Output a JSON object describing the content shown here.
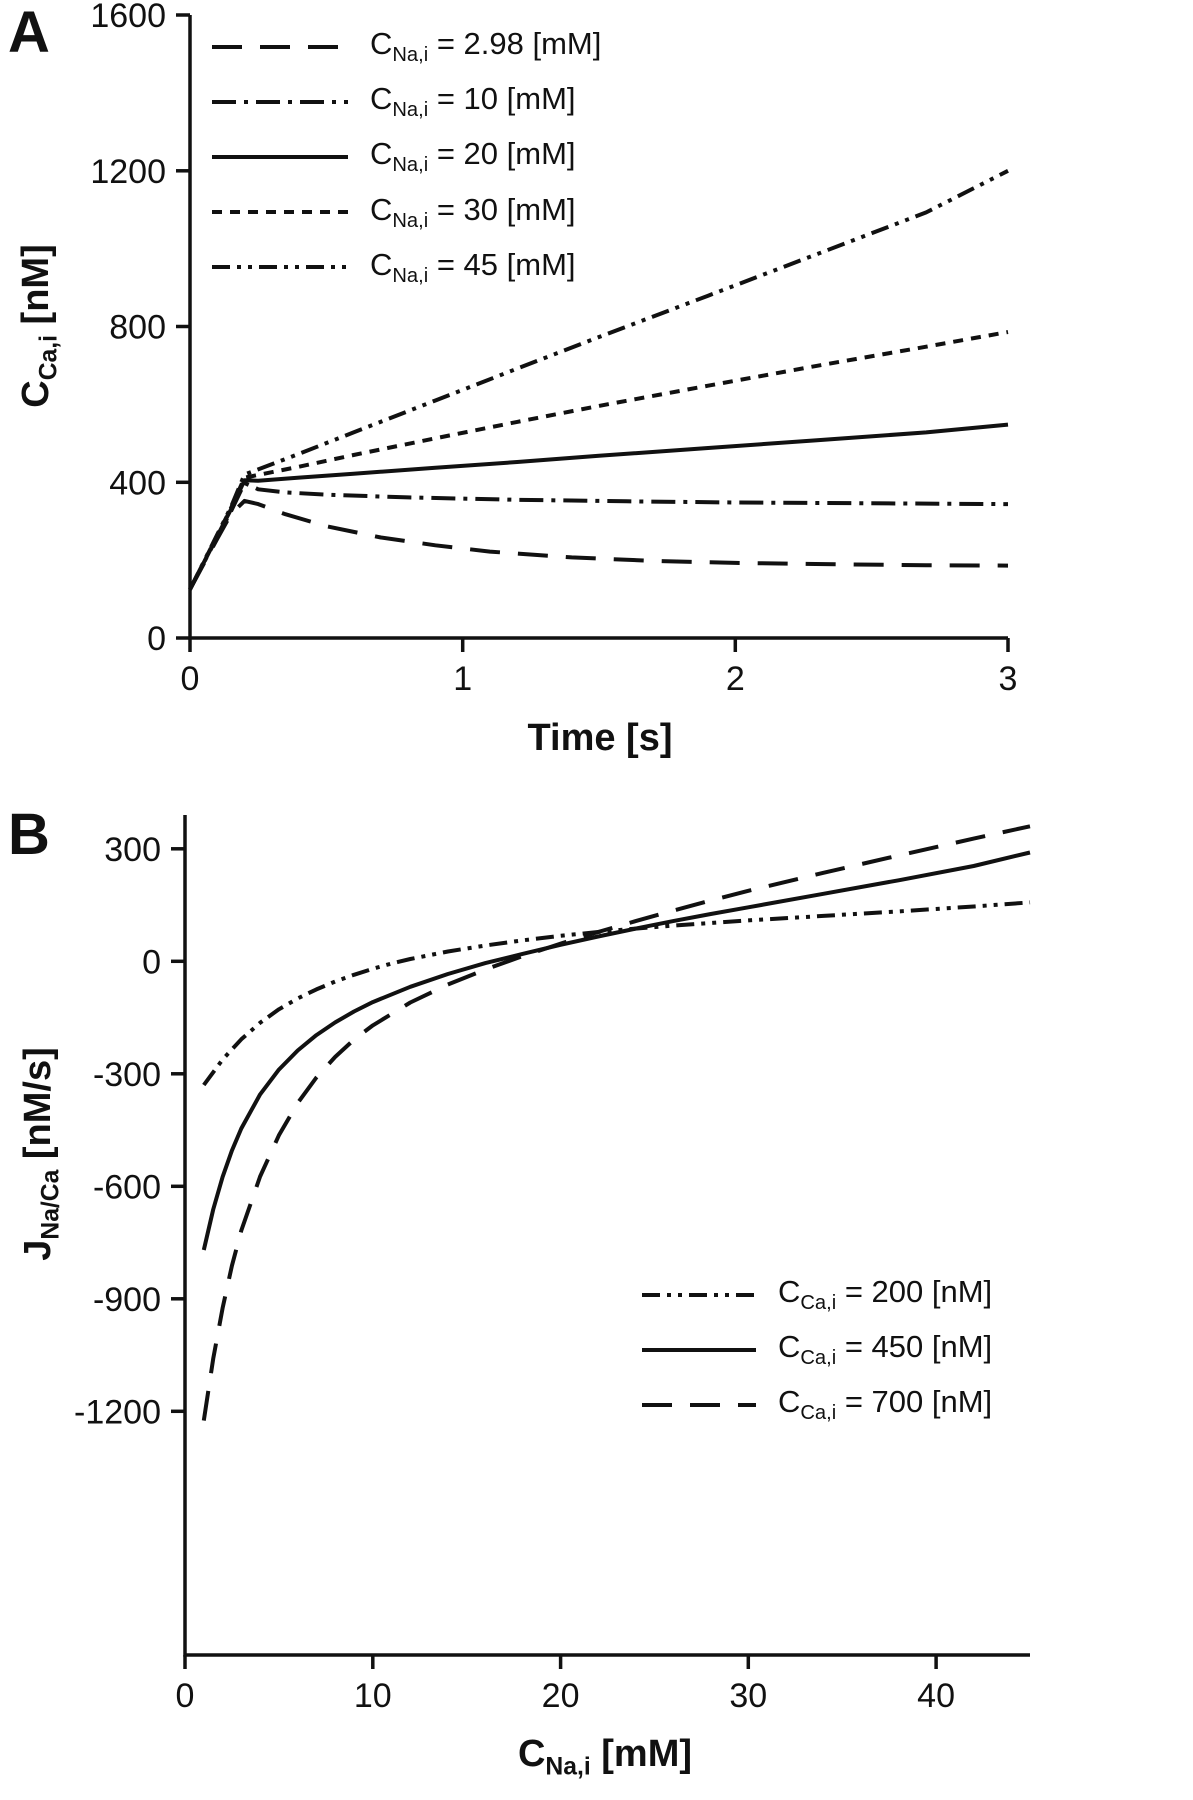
{
  "figure": {
    "panels": [
      {
        "label": "A",
        "ylabel": {
          "base": "C",
          "sub": "Ca,i",
          "rest": " [nM]"
        },
        "xlabel": {
          "base": "Time",
          "sub": "",
          "rest": " [s]"
        }
      },
      {
        "label": "B",
        "ylabel": {
          "base": "J",
          "sub": "Na/Ca",
          "rest": " [nM/s]"
        },
        "xlabel": {
          "base": "C",
          "sub": "Na,i",
          "rest": " [mM]"
        }
      }
    ],
    "line_color": "#111111"
  },
  "chart_data": [
    {
      "panel": "A",
      "type": "line",
      "title": "",
      "xlabel": "Time [s]",
      "ylabel": "C_Ca,i [nM]",
      "xlim": [
        0,
        3
      ],
      "ylim": [
        0,
        1600
      ],
      "xticks": [
        0,
        1,
        2,
        3
      ],
      "yticks": [
        0,
        400,
        800,
        1200,
        1600
      ],
      "grid": false,
      "legend_position": "top-left",
      "series": [
        {
          "name": "C_Na,i = 2.98 [mM]",
          "label": {
            "base": "C",
            "sub": "Na,i",
            "rest": " = 2.98 [mM]"
          },
          "style": "long-dash",
          "points": [
            [
              0,
              125
            ],
            [
              0.05,
              190
            ],
            [
              0.1,
              255
            ],
            [
              0.15,
              318
            ],
            [
              0.2,
              352
            ],
            [
              0.25,
              344
            ],
            [
              0.35,
              318
            ],
            [
              0.5,
              287
            ],
            [
              0.7,
              258
            ],
            [
              0.9,
              238
            ],
            [
              1.1,
              222
            ],
            [
              1.4,
              207
            ],
            [
              1.7,
              198
            ],
            [
              2.0,
              193
            ],
            [
              2.4,
              189
            ],
            [
              2.7,
              187
            ],
            [
              3.0,
              186
            ]
          ]
        },
        {
          "name": "C_Na,i = 10 [mM]",
          "label": {
            "base": "C",
            "sub": "Na,i",
            "rest": " = 10 [mM]"
          },
          "style": "dash-dot",
          "points": [
            [
              0,
              125
            ],
            [
              0.05,
              192
            ],
            [
              0.1,
              260
            ],
            [
              0.15,
              325
            ],
            [
              0.2,
              398
            ],
            [
              0.25,
              382
            ],
            [
              0.35,
              374
            ],
            [
              0.5,
              368
            ],
            [
              0.8,
              361
            ],
            [
              1.2,
              355
            ],
            [
              1.6,
              351
            ],
            [
              2.0,
              348
            ],
            [
              2.5,
              346
            ],
            [
              3.0,
              344
            ]
          ]
        },
        {
          "name": "C_Na,i = 20 [mM]",
          "label": {
            "base": "C",
            "sub": "Na,i",
            "rest": " = 20 [mM]"
          },
          "style": "solid",
          "points": [
            [
              0,
              125
            ],
            [
              0.05,
              193
            ],
            [
              0.1,
              262
            ],
            [
              0.15,
              330
            ],
            [
              0.2,
              405
            ],
            [
              0.25,
              404
            ],
            [
              0.4,
              412
            ],
            [
              0.6,
              422
            ],
            [
              0.9,
              437
            ],
            [
              1.2,
              452
            ],
            [
              1.5,
              468
            ],
            [
              1.9,
              488
            ],
            [
              2.3,
              508
            ],
            [
              2.7,
              528
            ],
            [
              3.0,
              548
            ]
          ]
        },
        {
          "name": "C_Na,i = 30 [mM]",
          "label": {
            "base": "C",
            "sub": "Na,i",
            "rest": " = 30 [mM]"
          },
          "style": "dash",
          "points": [
            [
              0,
              125
            ],
            [
              0.05,
              194
            ],
            [
              0.1,
              264
            ],
            [
              0.15,
              333
            ],
            [
              0.2,
              412
            ],
            [
              0.25,
              419
            ],
            [
              0.4,
              440
            ],
            [
              0.6,
              470
            ],
            [
              0.9,
              513
            ],
            [
              1.2,
              555
            ],
            [
              1.5,
              596
            ],
            [
              1.9,
              648
            ],
            [
              2.3,
              699
            ],
            [
              2.7,
              748
            ],
            [
              3.0,
              786
            ]
          ]
        },
        {
          "name": "C_Na,i = 45 [mM]",
          "label": {
            "base": "C",
            "sub": "Na,i",
            "rest": " = 45 [mM]"
          },
          "style": "dash-dot-dot",
          "points": [
            [
              0,
              125
            ],
            [
              0.05,
              195
            ],
            [
              0.1,
              266
            ],
            [
              0.15,
              336
            ],
            [
              0.2,
              420
            ],
            [
              0.25,
              433
            ],
            [
              0.4,
              473
            ],
            [
              0.6,
              528
            ],
            [
              0.9,
              610
            ],
            [
              1.2,
              692
            ],
            [
              1.5,
              773
            ],
            [
              1.9,
              879
            ],
            [
              2.3,
              986
            ],
            [
              2.7,
              1093
            ],
            [
              3.0,
              1200
            ]
          ]
        }
      ]
    },
    {
      "panel": "B",
      "type": "line",
      "title": "",
      "xlabel": "C_Na,i [mM]",
      "ylabel": "J_Na/Ca [nM/s]",
      "xlim": [
        0,
        45
      ],
      "ylim": [
        -1850,
        390
      ],
      "xticks": [
        0,
        10,
        20,
        30,
        40
      ],
      "yticks": [
        -1200,
        -900,
        -600,
        -300,
        0,
        300
      ],
      "grid": false,
      "legend_position": "bottom-right",
      "series": [
        {
          "name": "C_Ca,i = 200 [nM]",
          "label": {
            "base": "C",
            "sub": "Ca,i",
            "rest": " = 200 [nM]"
          },
          "style": "dash-dot-dot",
          "points": [
            [
              1,
              -330
            ],
            [
              2,
              -262
            ],
            [
              3,
              -208
            ],
            [
              4,
              -164
            ],
            [
              5,
              -128
            ],
            [
              6,
              -99
            ],
            [
              7,
              -75
            ],
            [
              8,
              -54
            ],
            [
              9,
              -36
            ],
            [
              10,
              -20
            ],
            [
              11,
              -6
            ],
            [
              12,
              6
            ],
            [
              14,
              26
            ],
            [
              16,
              42
            ],
            [
              18,
              56
            ],
            [
              20,
              68
            ],
            [
              22,
              78
            ],
            [
              24,
              87
            ],
            [
              26,
              95
            ],
            [
              28,
              102
            ],
            [
              30,
              109
            ],
            [
              34,
              121
            ],
            [
              38,
              133
            ],
            [
              42,
              146
            ],
            [
              45,
              157
            ]
          ]
        },
        {
          "name": "C_Ca,i = 450 [nM]",
          "label": {
            "base": "C",
            "sub": "Ca,i",
            "rest": " = 450 [nM]"
          },
          "style": "solid",
          "points": [
            [
              1,
              -770
            ],
            [
              1.5,
              -662
            ],
            [
              2,
              -575
            ],
            [
              2.5,
              -505
            ],
            [
              3,
              -446
            ],
            [
              4,
              -355
            ],
            [
              5,
              -289
            ],
            [
              6,
              -238
            ],
            [
              7,
              -197
            ],
            [
              8,
              -163
            ],
            [
              9,
              -134
            ],
            [
              10,
              -109
            ],
            [
              12,
              -68
            ],
            [
              14,
              -34
            ],
            [
              16,
              -5
            ],
            [
              18,
              20
            ],
            [
              20,
              44
            ],
            [
              22,
              66
            ],
            [
              24,
              87
            ],
            [
              26,
              107
            ],
            [
              28,
              126
            ],
            [
              30,
              144
            ],
            [
              34,
              180
            ],
            [
              38,
              216
            ],
            [
              42,
              254
            ],
            [
              45,
              290
            ]
          ]
        },
        {
          "name": "C_Ca,i = 700 [nM]",
          "label": {
            "base": "C",
            "sub": "Ca,i",
            "rest": " = 700 [nM]"
          },
          "style": "long-dash",
          "points": [
            [
              1,
              -1225
            ],
            [
              1.5,
              -1060
            ],
            [
              2,
              -925
            ],
            [
              2.5,
              -812
            ],
            [
              3,
              -718
            ],
            [
              4,
              -574
            ],
            [
              5,
              -464
            ],
            [
              6,
              -378
            ],
            [
              7,
              -310
            ],
            [
              8,
              -255
            ],
            [
              9,
              -209
            ],
            [
              10,
              -171
            ],
            [
              12,
              -110
            ],
            [
              14,
              -62
            ],
            [
              16,
              -22
            ],
            [
              18,
              14
            ],
            [
              20,
              47
            ],
            [
              22,
              78
            ],
            [
              24,
              107
            ],
            [
              26,
              135
            ],
            [
              28,
              162
            ],
            [
              30,
              188
            ],
            [
              34,
              236
            ],
            [
              38,
              282
            ],
            [
              42,
              327
            ],
            [
              45,
              360
            ]
          ]
        }
      ]
    }
  ]
}
